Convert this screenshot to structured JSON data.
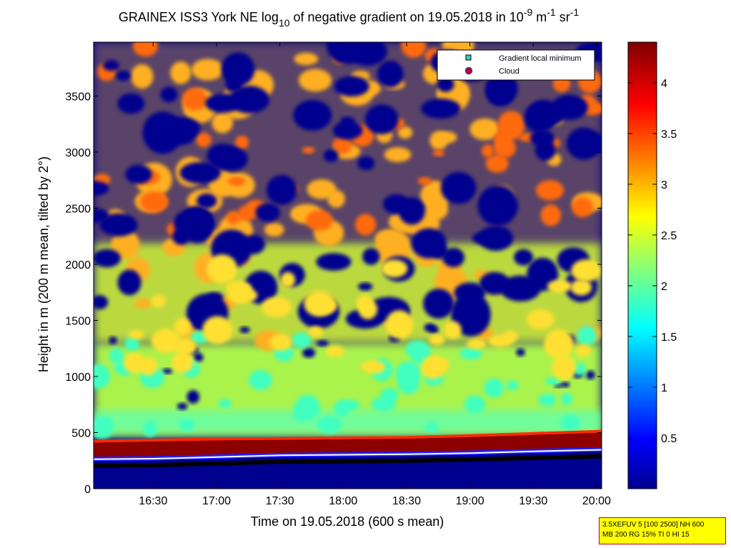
{
  "chart_data": {
    "type": "heatmap",
    "title": {
      "prefix": "GRAINEX ISS3 York NE log",
      "log_base": "10",
      "middle": " of negative gradient on 19.05.2018 in 10",
      "exp1": "-9",
      "unit_m": " m",
      "exp2": "-1",
      "unit_sr": " sr",
      "exp3": "-1"
    },
    "xlabel": "Time on 19.05.2018 (600 s mean)",
    "ylabel": "Height in m (200 m mean, tilted by 2°)",
    "x_ticks": [
      "16:30",
      "17:00",
      "17:30",
      "18:00",
      "18:30",
      "19:00",
      "19:30",
      "20:00"
    ],
    "x_tick_hours": [
      16.5,
      17.0,
      17.5,
      18.0,
      18.5,
      19.0,
      19.5,
      20.0
    ],
    "xlim_hours": [
      16.03,
      20.04
    ],
    "y_ticks": [
      0,
      500,
      1000,
      1500,
      2000,
      2500,
      3000,
      3500
    ],
    "ylim": [
      0,
      3980
    ],
    "colorbar": {
      "ticks": [
        0.5,
        1,
        1.5,
        2,
        2.5,
        3,
        3.5,
        4
      ],
      "tick_labels": [
        "0.5",
        "1",
        "1.5",
        "2",
        "2.5",
        "3",
        "3.5",
        "4"
      ],
      "range": [
        0,
        4.4
      ],
      "colormap": "jet"
    },
    "legend": {
      "placement": "top-right",
      "entries": [
        {
          "label": "Gradient local minimum",
          "marker": "square",
          "color": "#33cccc"
        },
        {
          "label": "Cloud",
          "marker": "circle",
          "color": "#cc0000"
        }
      ]
    },
    "boundary_layer_height_m": {
      "x_hours": [
        16.03,
        16.5,
        17.0,
        17.5,
        18.0,
        18.5,
        19.0,
        19.5,
        20.04
      ],
      "y": [
        205,
        210,
        225,
        240,
        245,
        250,
        260,
        275,
        290
      ]
    },
    "aerosol_layer_top_m": {
      "x_hours": [
        16.03,
        16.5,
        17.0,
        17.5,
        18.0,
        18.5,
        19.0,
        19.5,
        20.04
      ],
      "y": [
        420,
        430,
        440,
        445,
        450,
        455,
        470,
        490,
        510
      ]
    }
  },
  "info_box": {
    "line1": "3.5XEFUV 5 [100 2500] NH 600",
    "line2": "MB 200 RG 15% TI 0 HI 15"
  },
  "colors": {
    "background_field": "#00008f",
    "jet_stops": [
      "#00008f",
      "#0000ff",
      "#00ffff",
      "#ffff00",
      "#ff0000",
      "#800000"
    ]
  }
}
